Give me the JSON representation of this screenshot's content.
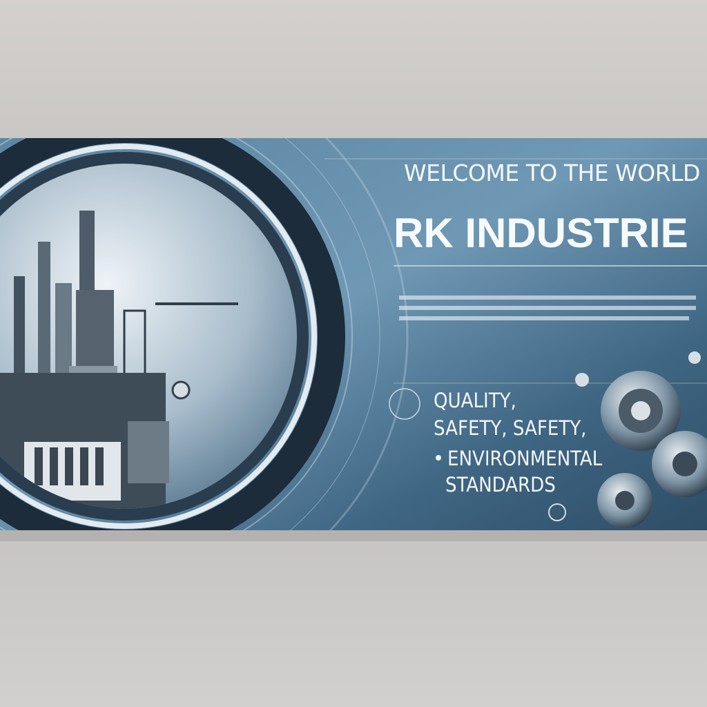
{
  "banner": {
    "welcome": "WELCOME TO THE WORLD",
    "brand": "RK INDUSTRIE",
    "features": [
      "QUALITY,",
      "SAFETY, SAFETY,",
      "ENVIRONMENTAL",
      "STANDARDS"
    ]
  }
}
